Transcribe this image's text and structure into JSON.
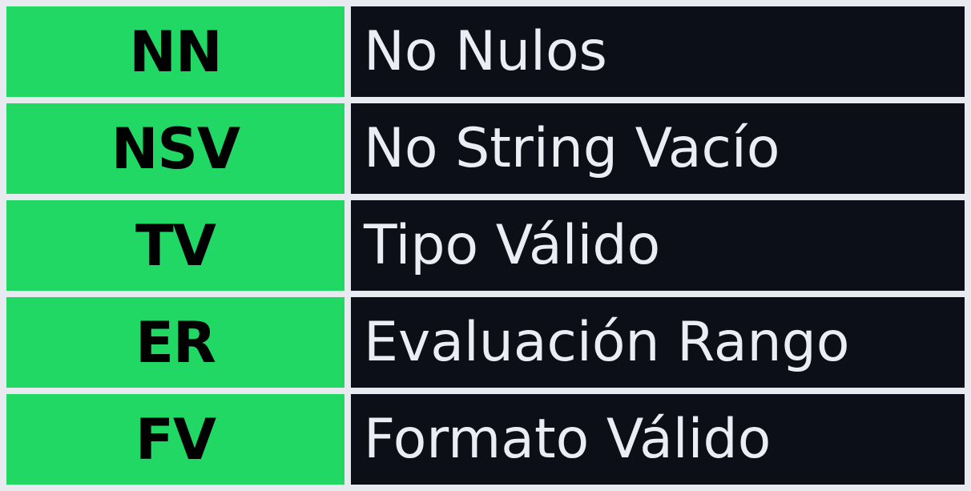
{
  "colors": {
    "background": "#e7ebf0",
    "abbreviation_cell": "#21d864",
    "abbreviation_text": "#000000",
    "description_cell": "#0d0f18",
    "description_text": "#eaedf3"
  },
  "rows": [
    {
      "abbr": "NN",
      "description": "No Nulos"
    },
    {
      "abbr": "NSV",
      "description": "No String Vacío"
    },
    {
      "abbr": "TV",
      "description": "Tipo Válido"
    },
    {
      "abbr": "ER",
      "description": "Evaluación Rango"
    },
    {
      "abbr": "FV",
      "description": "Formato Válido"
    }
  ]
}
